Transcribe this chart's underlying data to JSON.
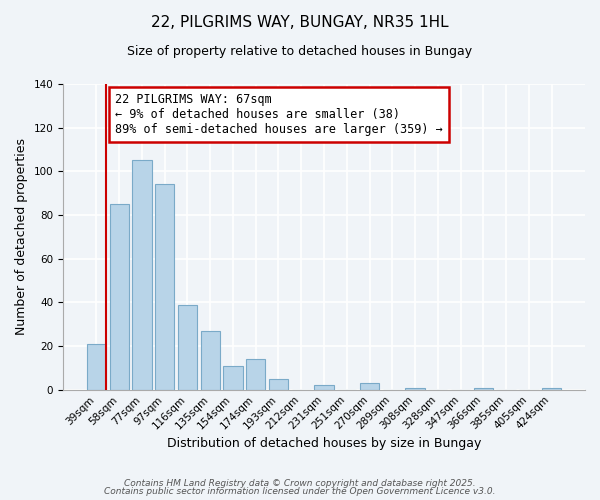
{
  "title": "22, PILGRIMS WAY, BUNGAY, NR35 1HL",
  "subtitle": "Size of property relative to detached houses in Bungay",
  "xlabel": "Distribution of detached houses by size in Bungay",
  "ylabel": "Number of detached properties",
  "bar_labels": [
    "39sqm",
    "58sqm",
    "77sqm",
    "97sqm",
    "116sqm",
    "135sqm",
    "154sqm",
    "174sqm",
    "193sqm",
    "212sqm",
    "231sqm",
    "251sqm",
    "270sqm",
    "289sqm",
    "308sqm",
    "328sqm",
    "347sqm",
    "366sqm",
    "385sqm",
    "405sqm",
    "424sqm"
  ],
  "bar_values": [
    21,
    85,
    105,
    94,
    39,
    27,
    11,
    14,
    5,
    0,
    2,
    0,
    3,
    0,
    1,
    0,
    0,
    1,
    0,
    0,
    1
  ],
  "bar_color": "#b8d4e8",
  "bar_edge_color": "#7aaac8",
  "vline_x_idx": 0,
  "vline_color": "#cc0000",
  "ylim": [
    0,
    140
  ],
  "annotation_title": "22 PILGRIMS WAY: 67sqm",
  "annotation_line1": "← 9% of detached houses are smaller (38)",
  "annotation_line2": "89% of semi-detached houses are larger (359) →",
  "annotation_box_color": "#ffffff",
  "annotation_box_edge": "#cc0000",
  "footer1": "Contains HM Land Registry data © Crown copyright and database right 2025.",
  "footer2": "Contains public sector information licensed under the Open Government Licence v3.0.",
  "title_fontsize": 11,
  "subtitle_fontsize": 9,
  "axis_label_fontsize": 9,
  "tick_fontsize": 7.5,
  "annotation_fontsize": 8.5,
  "footer_fontsize": 6.5,
  "background_color": "#f0f4f8"
}
